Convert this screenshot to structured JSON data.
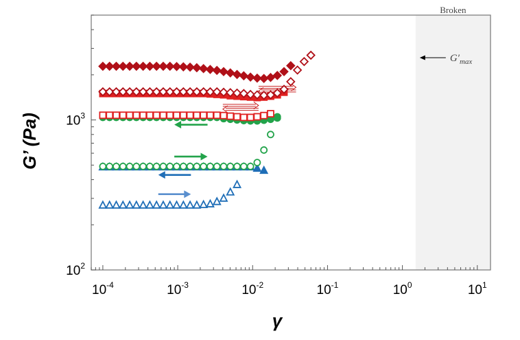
{
  "chart_data": {
    "type": "scatter",
    "xscale": "log",
    "yscale": "log",
    "xlim": [
      7e-05,
      15
    ],
    "ylim": [
      100,
      5000
    ],
    "xlabel": "γ",
    "ylabel": "G’ (Pa)",
    "x_ticks": [
      {
        "base": "10",
        "exp": "-4",
        "value": 0.0001
      },
      {
        "base": "10",
        "exp": "-3",
        "value": 0.001
      },
      {
        "base": "10",
        "exp": "-2",
        "value": 0.01
      },
      {
        "base": "10",
        "exp": "-1",
        "value": 0.1
      },
      {
        "base": "10",
        "exp": "0",
        "value": 1
      },
      {
        "base": "10",
        "exp": "1",
        "value": 10
      }
    ],
    "y_ticks": [
      {
        "base": "10",
        "exp": "2",
        "value": 100
      },
      {
        "base": "10",
        "exp": "3",
        "value": 1000
      }
    ],
    "broken_region": {
      "label": "Broken",
      "x_start": 1.5
    },
    "annotation": {
      "text": "G′max",
      "main": "G′",
      "sub": "max",
      "x": 1.5,
      "y": 2600
    },
    "x_log_start": -4,
    "x_log_step": 0.0896,
    "series": [
      {
        "name": "blue-open-triangle",
        "color": "#1f6eb7",
        "marker": "triangle",
        "filled": false,
        "values": [
          270,
          270,
          270,
          270,
          270,
          270,
          270,
          270,
          270,
          270,
          270,
          270,
          270,
          270,
          270,
          272,
          275,
          285,
          300,
          330,
          370
        ]
      },
      {
        "name": "blue-filled-triangle",
        "color": "#1f6eb7",
        "marker": "triangle",
        "filled": true,
        "values": [
          485,
          485,
          485,
          485,
          485,
          485,
          485,
          485,
          485,
          485,
          485,
          485,
          485,
          485,
          485,
          485,
          485,
          485,
          485,
          485,
          485,
          485,
          485,
          475,
          460
        ]
      },
      {
        "name": "green-open-circle",
        "color": "#22a34a",
        "marker": "circle",
        "filled": false,
        "values": [
          490,
          490,
          490,
          490,
          490,
          490,
          490,
          490,
          490,
          490,
          490,
          490,
          490,
          490,
          490,
          490,
          490,
          490,
          490,
          490,
          490,
          490,
          490,
          520,
          630,
          800,
          1050
        ]
      },
      {
        "name": "green-filled-circle",
        "color": "#22a34a",
        "marker": "circle",
        "filled": true,
        "values": [
          1040,
          1040,
          1040,
          1040,
          1040,
          1040,
          1040,
          1040,
          1040,
          1040,
          1040,
          1040,
          1040,
          1040,
          1040,
          1040,
          1040,
          1040,
          1020,
          1010,
          1000,
          990,
          985,
          985,
          995,
          1010,
          1030
        ]
      },
      {
        "name": "red-open-square",
        "color": "#e02020",
        "marker": "square",
        "filled": false,
        "values": [
          1075,
          1075,
          1075,
          1075,
          1075,
          1075,
          1075,
          1075,
          1075,
          1075,
          1075,
          1075,
          1075,
          1075,
          1075,
          1075,
          1075,
          1075,
          1070,
          1060,
          1050,
          1040,
          1040,
          1050,
          1070,
          1100
        ]
      },
      {
        "name": "red-filled-square",
        "color": "#e02020",
        "marker": "square",
        "filled": true,
        "values": [
          1500,
          1500,
          1500,
          1500,
          1500,
          1500,
          1500,
          1500,
          1500,
          1500,
          1500,
          1500,
          1500,
          1500,
          1500,
          1500,
          1490,
          1480,
          1470,
          1450,
          1440,
          1430,
          1420,
          1410,
          1420,
          1440,
          1470,
          1530
        ]
      },
      {
        "name": "darkred-open-diamond",
        "color": "#b01018",
        "marker": "diamond",
        "filled": false,
        "values": [
          1540,
          1540,
          1540,
          1540,
          1540,
          1540,
          1540,
          1540,
          1540,
          1540,
          1540,
          1540,
          1540,
          1540,
          1540,
          1540,
          1540,
          1540,
          1530,
          1520,
          1510,
          1500,
          1480,
          1470,
          1460,
          1470,
          1510,
          1600,
          1800,
          2150,
          2450,
          2700
        ]
      },
      {
        "name": "darkred-filled-diamond",
        "color": "#b01018",
        "marker": "diamond",
        "filled": true,
        "values": [
          2280,
          2280,
          2280,
          2280,
          2280,
          2280,
          2280,
          2280,
          2280,
          2280,
          2280,
          2270,
          2260,
          2250,
          2230,
          2200,
          2170,
          2140,
          2100,
          2060,
          2010,
          1970,
          1930,
          1900,
          1890,
          1920,
          1980,
          2100,
          2300
        ]
      }
    ],
    "arrows": [
      {
        "color": "#c00000",
        "style": "double-thin",
        "direction": "right",
        "x_from": 0.012,
        "x_to": 0.038,
        "y": 1650
      },
      {
        "color": "#c00000",
        "style": "double-thin",
        "direction": "left",
        "x_from": 0.012,
        "x_to": 0.038,
        "y": 1560
      },
      {
        "color": "#c00000",
        "style": "double-thin",
        "direction": "right",
        "x_from": 0.004,
        "x_to": 0.012,
        "y": 1250
      },
      {
        "color": "#c00000",
        "style": "double-thin",
        "direction": "left",
        "x_from": 0.004,
        "x_to": 0.012,
        "y": 1180
      },
      {
        "color": "#22a34a",
        "style": "solid",
        "direction": "left",
        "x_from": 0.0009,
        "x_to": 0.0025,
        "y": 930
      },
      {
        "color": "#22a34a",
        "style": "solid",
        "direction": "right",
        "x_from": 0.0009,
        "x_to": 0.0025,
        "y": 570
      },
      {
        "color": "#1f6eb7",
        "style": "solid",
        "direction": "left",
        "x_from": 0.00055,
        "x_to": 0.0015,
        "y": 430
      },
      {
        "color": "#5a8fce",
        "style": "solid",
        "direction": "right",
        "x_from": 0.00055,
        "x_to": 0.0015,
        "y": 320
      }
    ]
  }
}
